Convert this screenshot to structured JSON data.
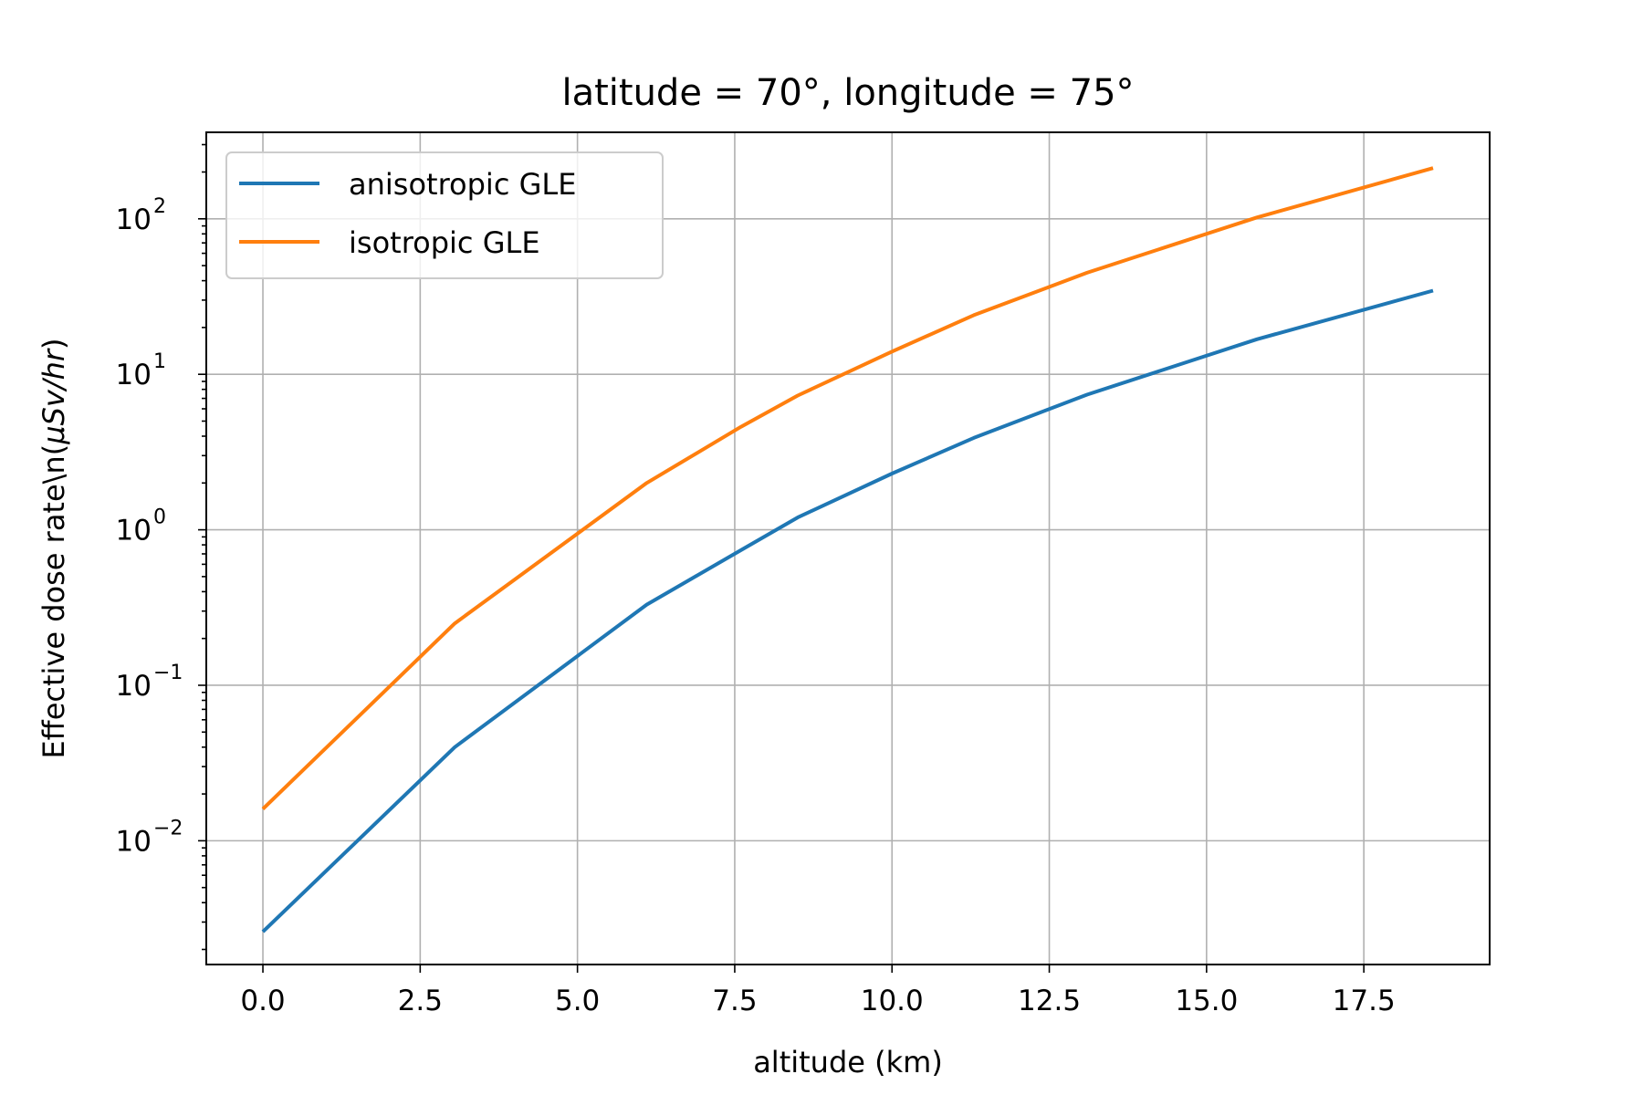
{
  "chart_data": {
    "type": "line",
    "title": "latitude = 70°, longitude = 75°",
    "xlabel": "altitude (km)",
    "ylabel": "Effective dose rate\\n(μSv/hr)",
    "ylabel_parts": {
      "prefix": "Effective dose rate\\n(",
      "italic": "μSv/hr",
      "suffix": ")"
    },
    "xlim": [
      -0.9,
      19.5
    ],
    "ylim": [
      0.0016,
      360
    ],
    "yscale": "log",
    "grid": true,
    "legend_position": "upper-left",
    "x_ticks": [
      {
        "value": 0.0,
        "label": "0.0"
      },
      {
        "value": 2.5,
        "label": "2.5"
      },
      {
        "value": 5.0,
        "label": "5.0"
      },
      {
        "value": 7.5,
        "label": "7.5"
      },
      {
        "value": 10.0,
        "label": "10.0"
      },
      {
        "value": 12.5,
        "label": "12.5"
      },
      {
        "value": 15.0,
        "label": "15.0"
      },
      {
        "value": 17.5,
        "label": "17.5"
      }
    ],
    "y_ticks": [
      {
        "value": 0.01,
        "base": "10",
        "exp": "−2"
      },
      {
        "value": 0.1,
        "base": "10",
        "exp": "−1"
      },
      {
        "value": 1,
        "base": "10",
        "exp": "0"
      },
      {
        "value": 10,
        "base": "10",
        "exp": "1"
      },
      {
        "value": 100,
        "base": "10",
        "exp": "2"
      }
    ],
    "series": [
      {
        "name": "anisotropic GLE",
        "color": "#1f77b4",
        "x": [
          0.0,
          3.05,
          6.1,
          7.6,
          8.5,
          10.0,
          11.3,
          13.1,
          15.8,
          18.6
        ],
        "y": [
          0.0026,
          0.04,
          0.33,
          0.74,
          1.2,
          2.3,
          3.9,
          7.4,
          16.8,
          34.5
        ]
      },
      {
        "name": "isotropic GLE",
        "color": "#ff7f0e",
        "x": [
          0.0,
          3.05,
          6.1,
          7.6,
          8.5,
          10.0,
          11.3,
          13.1,
          15.8,
          18.6
        ],
        "y": [
          0.016,
          0.25,
          2.0,
          4.6,
          7.3,
          14.0,
          24.0,
          45.0,
          102.0,
          212.0
        ]
      }
    ]
  }
}
